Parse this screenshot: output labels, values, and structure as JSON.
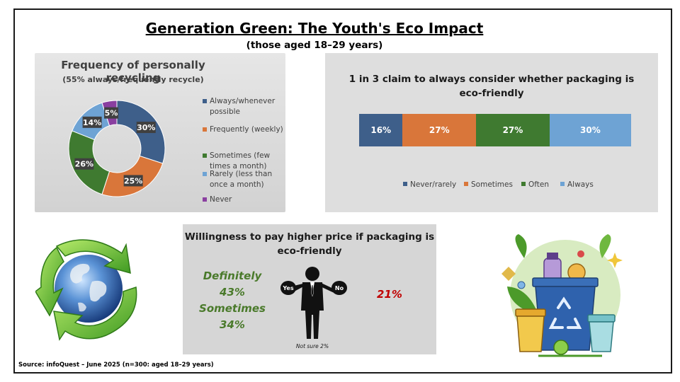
{
  "header": {
    "title": "Generation Green: The Youth's Eco Impact",
    "subtitle": "(those aged 18–29 years)"
  },
  "recycling": {
    "title": "Frequency of personally recycling",
    "subtitle": "(55% always/frequently recycle)"
  },
  "packaging": {
    "title": "1 in 3 claim to always consider whether packaging is eco-friendly"
  },
  "willingness": {
    "title": "Willingness to pay higher price if packaging is eco-friendly",
    "definitely_label": "Definitely",
    "definitely_value": "43%",
    "sometimes_label": "Sometimes",
    "sometimes_value": "34%",
    "no_value": "21%",
    "yes_sign": "Yes",
    "no_sign": "No",
    "not_sure": "Not sure 2%"
  },
  "source": "Source:  infoQuest – June 2025 (n=300:  aged 18–29 years)",
  "chart_data": [
    {
      "type": "pie",
      "title": "Frequency of personally recycling",
      "subtitle": "(55% always/frequently recycle)",
      "categories": [
        "Always/whenever possible",
        "Frequently (weekly)",
        "Sometimes (few times a month)",
        "Rarely (less than once a month)",
        "Never"
      ],
      "values": [
        30,
        25,
        26,
        14,
        5
      ],
      "labels": [
        "30%",
        "25%",
        "26%",
        "14%",
        "5%"
      ],
      "colors": [
        "#3e5f8a",
        "#d9763a",
        "#3f7a30",
        "#6ea3d4",
        "#8a3fa0"
      ],
      "legend_lines": [
        [
          "Always/whenever",
          "possible"
        ],
        [
          "Frequently (weekly)"
        ],
        [
          "Sometimes (few",
          "times a month)"
        ],
        [
          "Rarely (less than",
          "once a month)"
        ],
        [
          "Never"
        ]
      ],
      "legend": "right",
      "donut": true
    },
    {
      "type": "bar",
      "orientation": "horizontal-stacked",
      "title": "1 in 3 claim to always consider whether packaging is eco-friendly",
      "series": [
        {
          "name": "Never/rarely",
          "values": [
            16
          ],
          "label": "16%",
          "color": "#3e5f8a"
        },
        {
          "name": "Sometimes",
          "values": [
            27
          ],
          "label": "27%",
          "color": "#d9763a"
        },
        {
          "name": "Often",
          "values": [
            27
          ],
          "label": "27%",
          "color": "#3f7a30"
        },
        {
          "name": "Always",
          "values": [
            30
          ],
          "label": "30%",
          "color": "#6ea3d4"
        }
      ],
      "legend": "bottom"
    }
  ]
}
